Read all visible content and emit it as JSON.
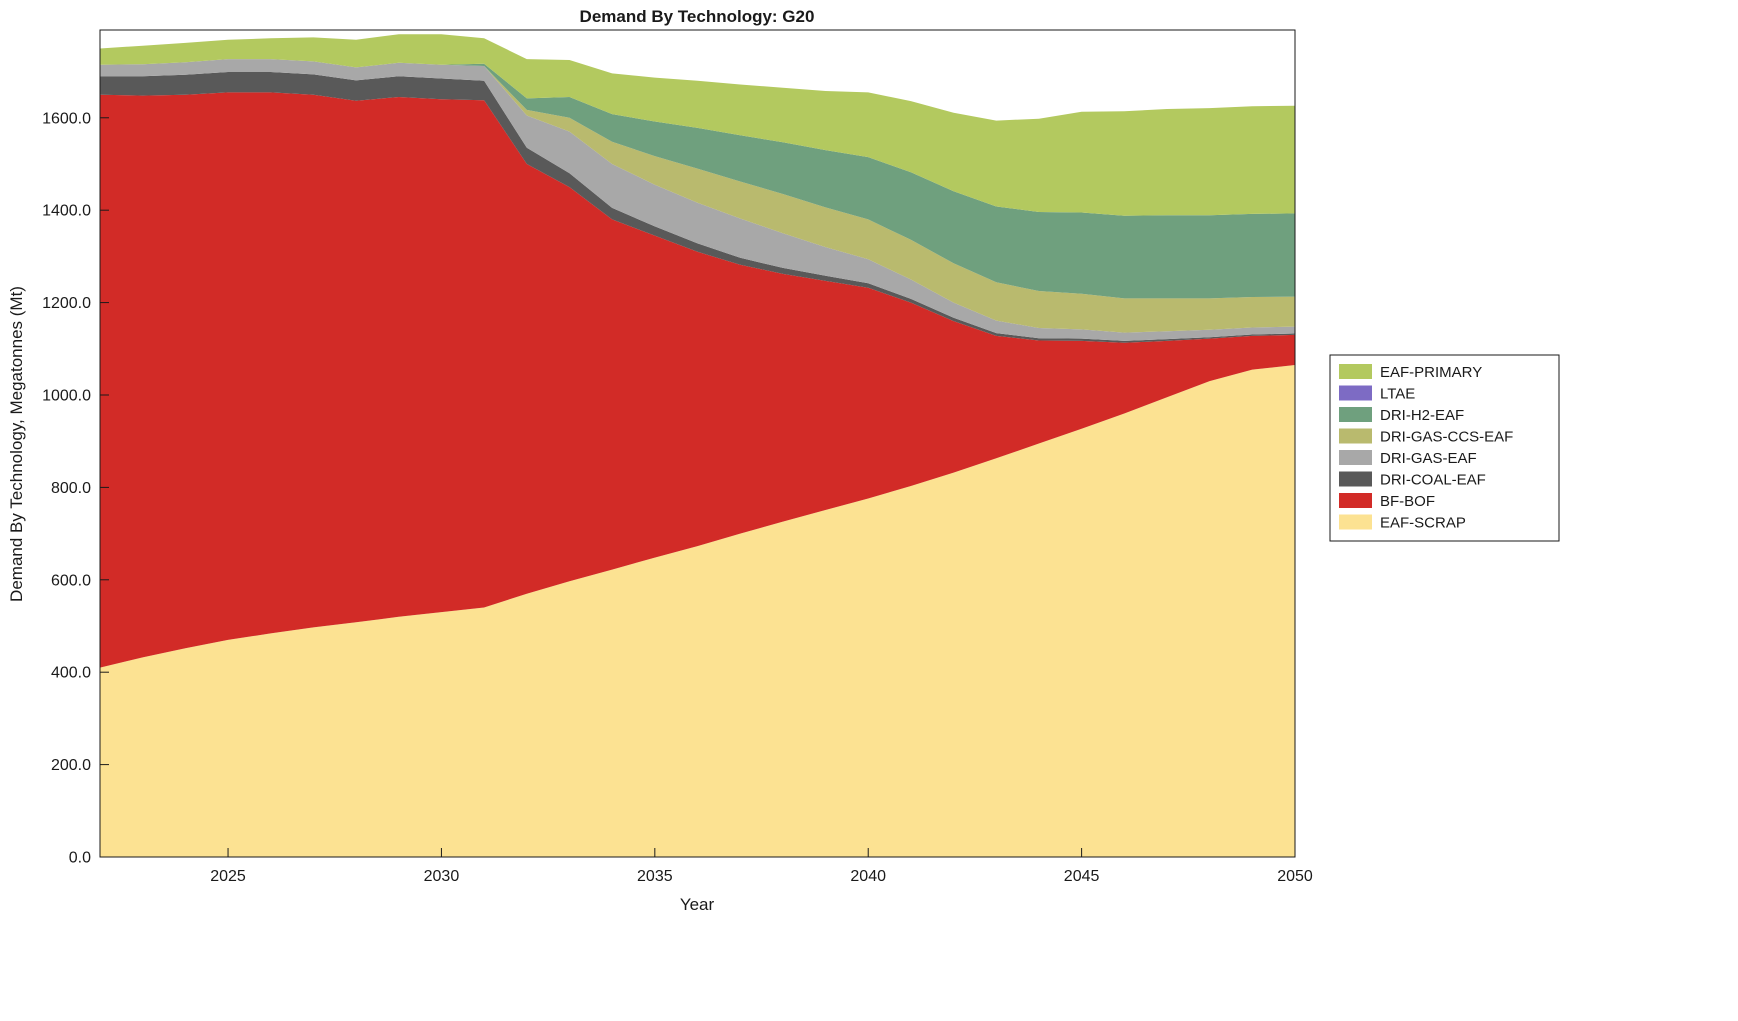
{
  "figure": {
    "background": "#ffffff",
    "axis_color": "#1a1a1a"
  },
  "chart_data": {
    "type": "area",
    "stacked": true,
    "title": "Demand By Technology: G20",
    "xlabel": "Year",
    "ylabel": "Demand By Technology, Megatonnes (Mt)",
    "xlim": [
      2022,
      2050
    ],
    "ylim": [
      0,
      1790
    ],
    "grid": false,
    "legend_position": "right-outside",
    "legend_order": "top-is-last-stacked",
    "xticks": [
      2025,
      2030,
      2035,
      2040,
      2045,
      2050
    ],
    "yticks": [
      "0.0",
      "200.0",
      "400.0",
      "600.0",
      "800.0",
      "1000.0",
      "1200.0",
      "1400.0",
      "1600.0"
    ],
    "x": [
      2022,
      2023,
      2024,
      2025,
      2026,
      2027,
      2028,
      2029,
      2030,
      2031,
      2032,
      2033,
      2034,
      2035,
      2036,
      2037,
      2038,
      2039,
      2040,
      2041,
      2042,
      2043,
      2044,
      2045,
      2046,
      2047,
      2048,
      2049,
      2050
    ],
    "series": [
      {
        "name": "EAF-SCRAP",
        "color": "#fce292",
        "values": [
          410,
          432,
          452,
          470,
          484,
          497,
          508,
          520,
          530,
          540,
          570,
          597,
          622,
          648,
          673,
          700,
          726,
          751,
          776,
          803,
          832,
          863,
          895,
          927,
          960,
          995,
          1030,
          1055,
          1065
        ]
      },
      {
        "name": "BF-BOF",
        "color": "#d22b27",
        "values": [
          1240,
          1216,
          1198,
          1185,
          1171,
          1153,
          1129,
          1125,
          1110,
          1098,
          930,
          853,
          758,
          697,
          637,
          582,
          536,
          496,
          456,
          397,
          328,
          265,
          223,
          190,
          153,
          122,
          92,
          73,
          65
        ]
      },
      {
        "name": "DRI-COAL-EAF",
        "color": "#595959",
        "values": [
          40,
          42,
          43,
          44,
          44,
          44,
          44,
          45,
          45,
          42,
          35,
          30,
          25,
          20,
          18,
          15,
          13,
          11,
          10,
          8,
          7,
          6,
          5,
          5,
          4,
          4,
          3,
          3,
          3
        ]
      },
      {
        "name": "DRI-GAS-EAF",
        "color": "#a8a8a8",
        "values": [
          25,
          26,
          27,
          28,
          28,
          28,
          28,
          29,
          30,
          32,
          70,
          90,
          95,
          90,
          88,
          85,
          75,
          62,
          52,
          42,
          33,
          27,
          22,
          20,
          18,
          17,
          16,
          15,
          15
        ]
      },
      {
        "name": "DRI-GAS-CCS-EAF",
        "color": "#b9ba6e",
        "values": [
          0,
          0,
          0,
          0,
          0,
          0,
          0,
          0,
          0,
          0,
          12,
          30,
          48,
          62,
          74,
          80,
          85,
          86,
          86,
          86,
          85,
          83,
          80,
          77,
          74,
          71,
          68,
          66,
          65
        ]
      },
      {
        "name": "DRI-H2-EAF",
        "color": "#6fa07e",
        "values": [
          0,
          0,
          0,
          0,
          0,
          0,
          0,
          0,
          0,
          5,
          25,
          45,
          60,
          75,
          88,
          100,
          112,
          124,
          135,
          146,
          156,
          164,
          171,
          176,
          179,
          180,
          180,
          180,
          180
        ]
      },
      {
        "name": "LTAE",
        "color": "#7d6bc4",
        "values": [
          0,
          0,
          0,
          0,
          0,
          0,
          0,
          0,
          0,
          0,
          0,
          0,
          0,
          0,
          0,
          0,
          0,
          0,
          0,
          0,
          0,
          0,
          0,
          0,
          0,
          0,
          0,
          0,
          0
        ]
      },
      {
        "name": "EAF-PRIMARY",
        "color": "#b3c95f",
        "values": [
          35,
          40,
          42,
          42,
          45,
          52,
          60,
          62,
          66,
          55,
          85,
          80,
          88,
          95,
          102,
          110,
          118,
          128,
          140,
          154,
          170,
          186,
          202,
          218,
          226,
          230,
          232,
          233,
          233
        ]
      }
    ]
  }
}
